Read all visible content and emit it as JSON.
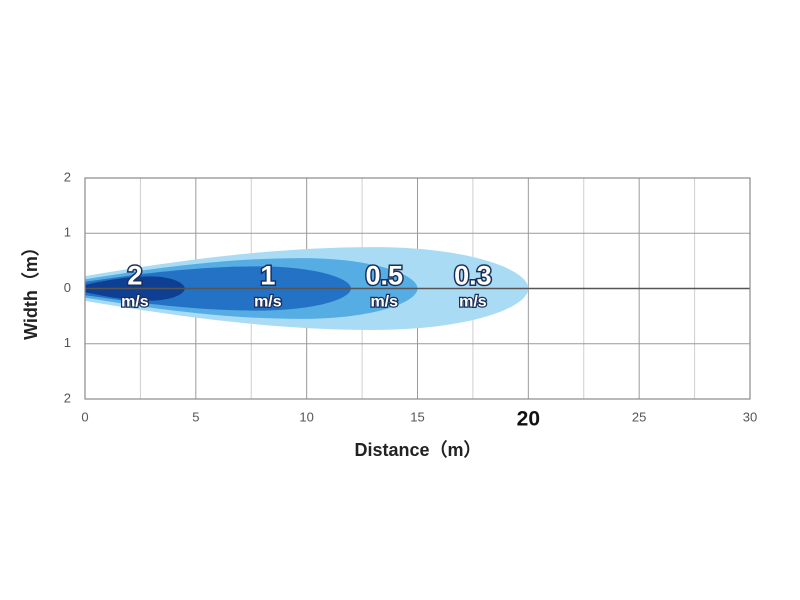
{
  "chart_data": {
    "type": "throw",
    "x_label": "Distance（m）",
    "y_label": "Width（m）",
    "xlim": [
      0,
      30
    ],
    "xticks": [
      0,
      5,
      10,
      15,
      20,
      25,
      30
    ],
    "emphasized_xtick": 20,
    "ylim": [
      -2,
      2
    ],
    "yticks": [
      {
        "value": -2,
        "label": "2"
      },
      {
        "value": -1,
        "label": "1"
      },
      0,
      1,
      2
    ],
    "grid": true,
    "unit": "m/s",
    "series": [
      {
        "name": "0.3",
        "color": "#a9dcf4",
        "reach": 20,
        "half_width": 0.75
      },
      {
        "name": "0.5",
        "color": "#55ade4",
        "reach": 15,
        "half_width": 0.55
      },
      {
        "name": "1",
        "color": "#2472c6",
        "reach": 12,
        "half_width": 0.4
      },
      {
        "name": "2",
        "color": "#0f3f92",
        "reach": 4.5,
        "half_width": 0.22
      }
    ]
  }
}
